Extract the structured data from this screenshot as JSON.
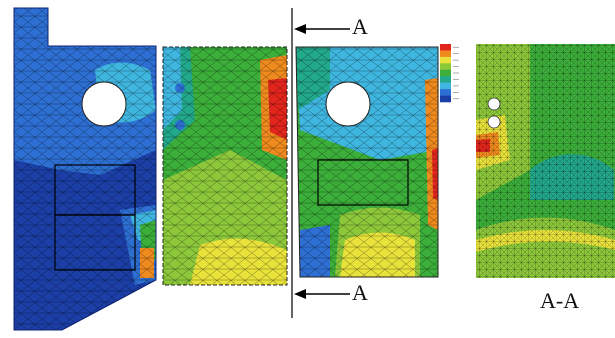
{
  "figure": {
    "section_labels": {
      "top": "A",
      "bottom": "A"
    },
    "section_view_label": "A-A",
    "colors": {
      "blue_dark": "#1b3fa6",
      "blue": "#2d6fd2",
      "cyan": "#3fb6e0",
      "teal": "#22a88a",
      "green": "#3cae3a",
      "green_light": "#8cc83a",
      "yellow": "#e8e23a",
      "orange": "#ef8a1e",
      "red": "#e2251d"
    },
    "legend_colors": [
      "#e2251d",
      "#ef8a1e",
      "#e8e23a",
      "#8cc83a",
      "#3cae3a",
      "#22a88a",
      "#3fb6e0",
      "#2d6fd2",
      "#1b3fa6"
    ]
  }
}
